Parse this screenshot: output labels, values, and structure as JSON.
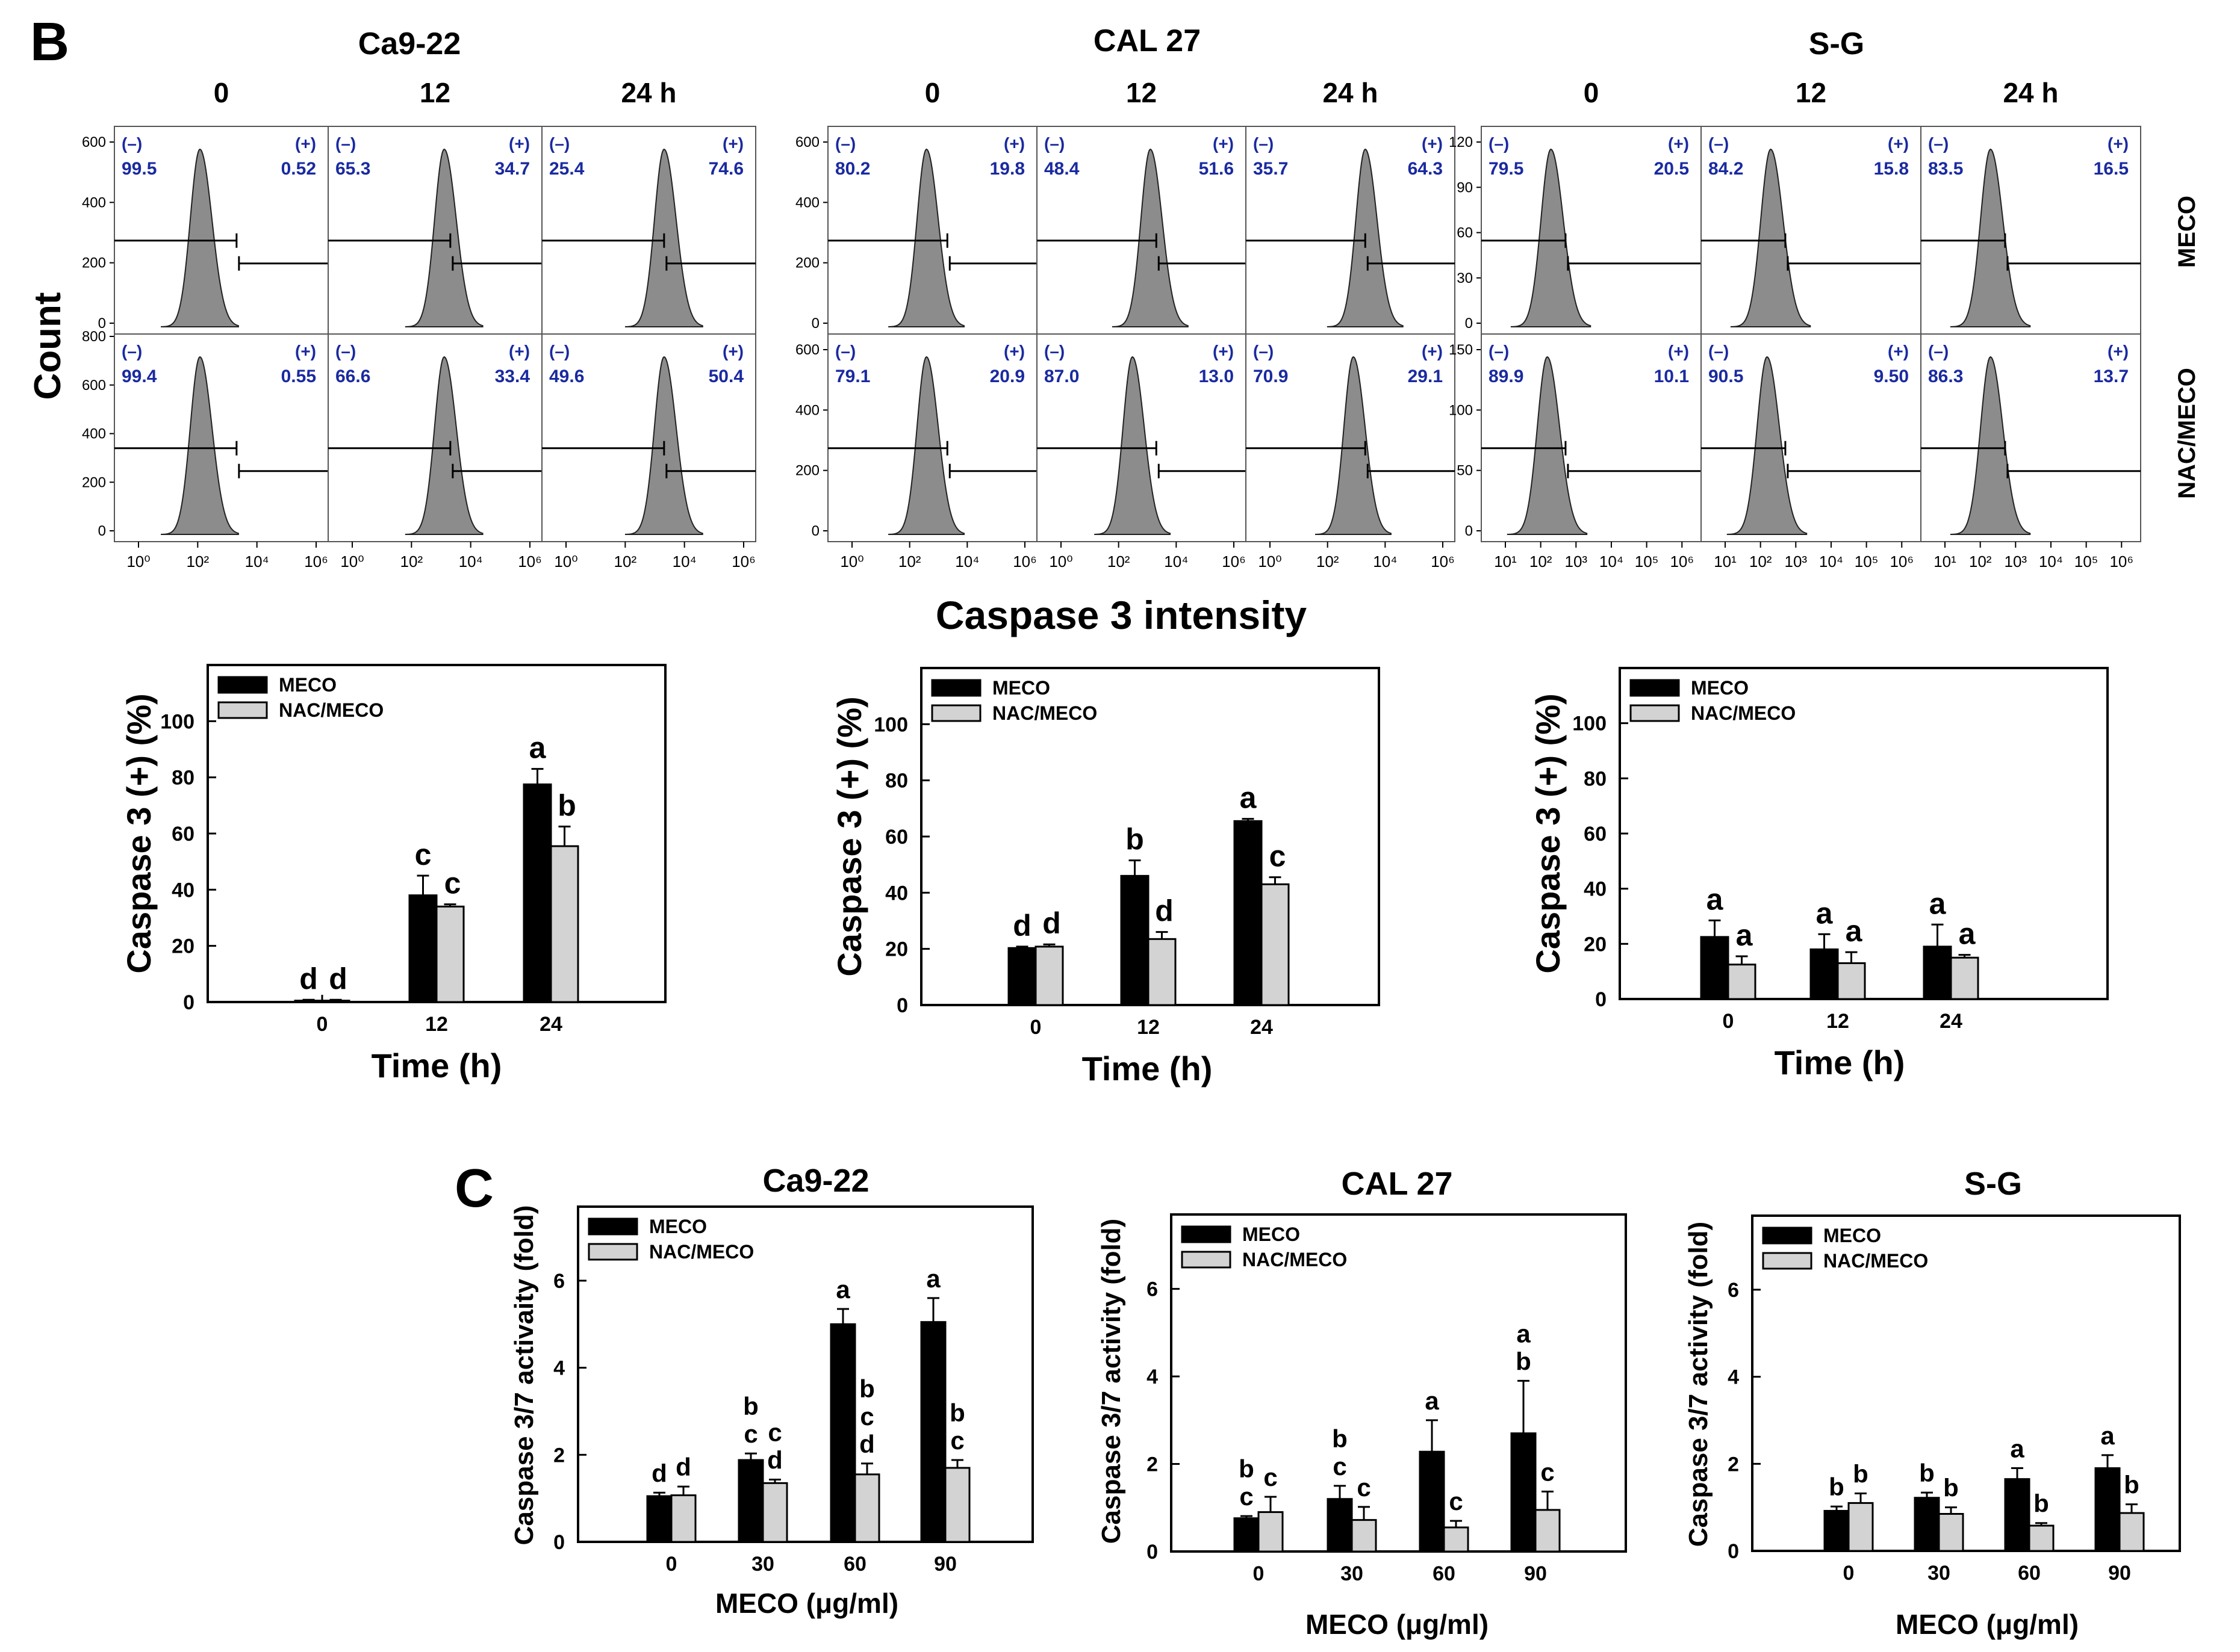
{
  "panel_b": {
    "letter": "B",
    "y_label": "Count",
    "x_label": "Caspase 3 intensity",
    "row_labels": [
      "MECO",
      "NAC/MECO"
    ],
    "neg_label": "(–)",
    "pos_label": "(+)",
    "groups": [
      {
        "cell_line": "Ca9-22",
        "times": [
          "0",
          "12",
          "24 h"
        ],
        "y_ticks": [
          [
            "0",
            "200",
            "400",
            "600"
          ],
          [
            "0",
            "200",
            "400",
            "600",
            "800"
          ]
        ],
        "x_ticks": [
          "10⁰",
          "10²",
          "10⁴",
          "10⁶"
        ],
        "histograms": [
          [
            {
              "neg": "99.5",
              "pos": "0.52",
              "mode": 2.8
            },
            {
              "neg": "65.3",
              "pos": "34.7",
              "mode": 3.8
            },
            {
              "neg": "25.4",
              "pos": "74.6",
              "mode": 4.0
            }
          ],
          [
            {
              "neg": "99.4",
              "pos": "0.55",
              "mode": 2.8
            },
            {
              "neg": "66.6",
              "pos": "33.4",
              "mode": 3.8
            },
            {
              "neg": "49.6",
              "pos": "50.4",
              "mode": 4.0
            }
          ]
        ]
      },
      {
        "cell_line": "CAL 27",
        "times": [
          "0",
          "12",
          "24 h"
        ],
        "y_ticks": [
          [
            "0",
            "200",
            "400",
            "600"
          ],
          [
            "0",
            "200",
            "400",
            "600"
          ]
        ],
        "x_ticks": [
          "10⁰",
          "10²",
          "10⁴",
          "10⁶"
        ],
        "histograms": [
          [
            {
              "neg": "80.2",
              "pos": "19.8",
              "mode": 3.3
            },
            {
              "neg": "48.4",
              "pos": "51.6",
              "mode": 3.8
            },
            {
              "neg": "35.7",
              "pos": "64.3",
              "mode": 4.0
            }
          ],
          [
            {
              "neg": "79.1",
              "pos": "20.9",
              "mode": 3.3
            },
            {
              "neg": "87.0",
              "pos": "13.0",
              "mode": 3.2
            },
            {
              "neg": "70.9",
              "pos": "29.1",
              "mode": 3.6
            }
          ]
        ]
      },
      {
        "cell_line": "S-G",
        "times": [
          "0",
          "12",
          "24 h"
        ],
        "y_ticks": [
          [
            "0",
            "30",
            "60",
            "90",
            "120"
          ],
          [
            "0",
            "50",
            "100",
            "150"
          ]
        ],
        "x_ticks": [
          "10¹",
          "10²",
          "10³",
          "10⁴",
          "10⁵",
          "10⁶"
        ],
        "histograms": [
          [
            {
              "neg": "79.5",
              "pos": "20.5",
              "mode": 1.9
            },
            {
              "neg": "84.2",
              "pos": "15.8",
              "mode": 1.9
            },
            {
              "neg": "83.5",
              "pos": "16.5",
              "mode": 1.9
            }
          ],
          [
            {
              "neg": "89.9",
              "pos": "10.1",
              "mode": 1.8
            },
            {
              "neg": "90.5",
              "pos": "9.50",
              "mode": 1.8
            },
            {
              "neg": "86.3",
              "pos": "13.7",
              "mode": 1.9
            }
          ]
        ]
      }
    ]
  },
  "panel_c": {
    "letter": "C"
  },
  "chart_data": [
    {
      "type": "bar",
      "categories": [
        "0",
        "12",
        "24"
      ],
      "xlabel": "Time (h)",
      "ylabel": "Caspase 3 (+) (%)",
      "ylim": [
        0,
        120
      ],
      "y_ticks": [
        0,
        20,
        40,
        60,
        80,
        100
      ],
      "legend": "top-left",
      "series": [
        {
          "name": "MECO",
          "color": "#000000",
          "values": [
            0.5,
            38,
            77.5
          ],
          "errors": [
            0.3,
            7,
            5.5
          ],
          "letters": [
            "d",
            "c",
            "a"
          ]
        },
        {
          "name": "NAC/MECO",
          "color": "#d3d3d3",
          "values": [
            0.5,
            34,
            55.5
          ],
          "errors": [
            0.3,
            0.8,
            7
          ],
          "letters": [
            "d",
            "c",
            "b"
          ]
        }
      ]
    },
    {
      "type": "bar",
      "categories": [
        "0",
        "12",
        "24"
      ],
      "xlabel": "Time (h)",
      "ylabel": "Caspase 3 (+) (%)",
      "ylim": [
        0,
        120
      ],
      "y_ticks": [
        0,
        20,
        40,
        60,
        80,
        100
      ],
      "legend": "top-left",
      "series": [
        {
          "name": "MECO",
          "color": "#000000",
          "values": [
            20.3,
            46,
            65.5
          ],
          "errors": [
            0.5,
            5.5,
            0.8
          ],
          "letters": [
            "d",
            "b",
            "a"
          ]
        },
        {
          "name": "NAC/MECO",
          "color": "#d3d3d3",
          "values": [
            20.8,
            23.5,
            43
          ],
          "errors": [
            0.8,
            2.5,
            2.5
          ],
          "letters": [
            "d",
            "d",
            "c"
          ]
        }
      ]
    },
    {
      "type": "bar",
      "categories": [
        "0",
        "12",
        "24"
      ],
      "xlabel": "Time (h)",
      "ylabel": "Caspase 3 (+) (%)",
      "ylim": [
        0,
        120
      ],
      "y_ticks": [
        0,
        20,
        40,
        60,
        80,
        100
      ],
      "legend": "top-left",
      "series": [
        {
          "name": "MECO",
          "color": "#000000",
          "values": [
            22.5,
            18,
            19
          ],
          "errors": [
            6,
            5.5,
            8
          ],
          "letters": [
            "a",
            "a",
            "a"
          ]
        },
        {
          "name": "NAC/MECO",
          "color": "#d3d3d3",
          "values": [
            12.5,
            13,
            15
          ],
          "errors": [
            3,
            4,
            1
          ],
          "letters": [
            "a",
            "a",
            "a"
          ]
        }
      ]
    },
    {
      "type": "bar",
      "title": "Ca9-22",
      "categories": [
        "0",
        "30",
        "60",
        "90"
      ],
      "xlabel": "MECO (μg/ml)",
      "ylabel": "Caspase 3/7 activaity (fold)",
      "ylim": [
        0,
        7.7
      ],
      "y_ticks": [
        0,
        2,
        4,
        6
      ],
      "legend": "top-left",
      "series": [
        {
          "name": "MECO",
          "color": "#000000",
          "values": [
            1.05,
            1.88,
            5.0,
            5.05
          ],
          "errors": [
            0.08,
            0.15,
            0.35,
            0.55
          ],
          "letters": [
            "d",
            "b\nc",
            "a",
            "a"
          ]
        },
        {
          "name": "NAC/MECO",
          "color": "#d3d3d3",
          "values": [
            1.07,
            1.35,
            1.55,
            1.7
          ],
          "errors": [
            0.2,
            0.08,
            0.25,
            0.18
          ],
          "letters": [
            "d",
            "c\nd",
            "b\nc\nd",
            "b\nc"
          ]
        }
      ]
    },
    {
      "type": "bar",
      "title": "CAL 27",
      "categories": [
        "0",
        "30",
        "60",
        "90"
      ],
      "xlabel": "MECO (μg/ml)",
      "ylabel": "Caspase 3/7 activity (fold)",
      "ylim": [
        0,
        7.7
      ],
      "y_ticks": [
        0,
        2,
        4,
        6
      ],
      "legend": "top-left",
      "series": [
        {
          "name": "MECO",
          "color": "#000000",
          "values": [
            0.76,
            1.2,
            2.28,
            2.7
          ],
          "errors": [
            0.05,
            0.3,
            0.72,
            1.2
          ],
          "letters": [
            "b\nc",
            "b\nc",
            "a",
            "a\nb"
          ]
        },
        {
          "name": "NAC/MECO",
          "color": "#d3d3d3",
          "values": [
            0.9,
            0.72,
            0.55,
            0.95
          ],
          "errors": [
            0.35,
            0.3,
            0.15,
            0.42
          ],
          "letters": [
            "c",
            "c",
            "c",
            "c"
          ]
        }
      ]
    },
    {
      "type": "bar",
      "title": "S-G",
      "categories": [
        "0",
        "30",
        "60",
        "90"
      ],
      "xlabel": "MECO (μg/ml)",
      "ylabel": "Caspase 3/7 activity (fold)",
      "ylim": [
        0,
        7.7
      ],
      "y_ticks": [
        0,
        2,
        4,
        6
      ],
      "legend": "top-left",
      "series": [
        {
          "name": "MECO",
          "color": "#000000",
          "values": [
            0.92,
            1.22,
            1.65,
            1.9
          ],
          "errors": [
            0.1,
            0.12,
            0.25,
            0.3
          ],
          "letters": [
            "b",
            "b",
            "a",
            "a"
          ]
        },
        {
          "name": "NAC/MECO",
          "color": "#d3d3d3",
          "values": [
            1.1,
            0.85,
            0.58,
            0.87
          ],
          "errors": [
            0.22,
            0.15,
            0.06,
            0.2
          ],
          "letters": [
            "b",
            "b",
            "b",
            "b"
          ]
        }
      ]
    }
  ]
}
